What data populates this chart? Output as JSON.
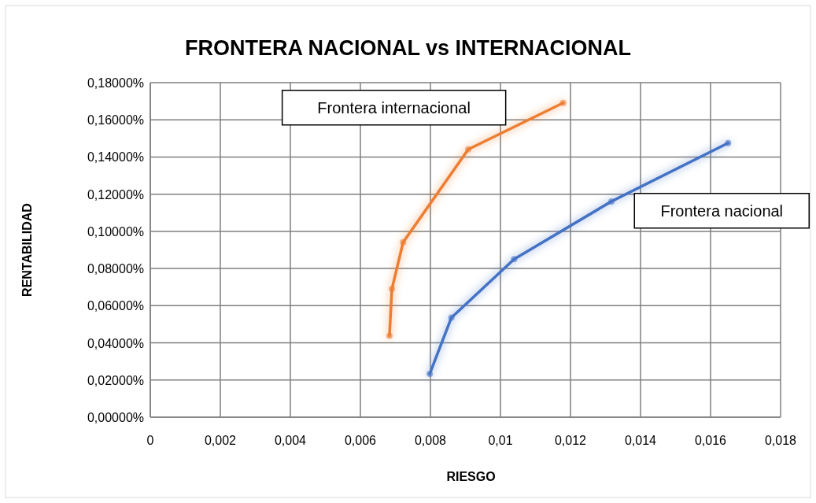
{
  "chart_data": {
    "type": "line",
    "title": "FRONTERA NACIONAL vs INTERNACIONAL",
    "xlabel": "RIESGO",
    "ylabel": "RENTABILIDAD",
    "series": [
      {
        "name": "Frontera internacional",
        "color": "#ed7d31",
        "x": [
          0.00683,
          0.0069,
          0.00722,
          0.00908,
          0.01179
        ],
        "values": [
          0.0438,
          0.069,
          0.0941,
          0.1441,
          0.1691
        ]
      },
      {
        "name": "Frontera nacional",
        "color": "#4472c4",
        "x": [
          0.00798,
          0.0086,
          0.01039,
          0.01317,
          0.0165
        ],
        "values": [
          0.0233,
          0.0536,
          0.085,
          0.1161,
          0.1475
        ]
      }
    ],
    "xlim": [
      0,
      0.018
    ],
    "xticks": [
      0,
      {
        "value": 0.002,
        "label": "0,002"
      },
      {
        "value": 0.004,
        "label": "0,004"
      },
      {
        "value": 0.006,
        "label": "0,006"
      },
      {
        "value": 0.008,
        "label": "0,008"
      },
      {
        "value": 0.01,
        "label": "0,01"
      },
      {
        "value": 0.012,
        "label": "0,012"
      },
      {
        "value": 0.014,
        "label": "0,014"
      },
      {
        "value": 0.016,
        "label": "0,016"
      },
      {
        "value": 0.018,
        "label": "0,018"
      }
    ],
    "ylim": [
      0,
      0.18
    ],
    "yticks": [
      {
        "value": 0,
        "label": "0,00000%"
      },
      {
        "value": 0.02,
        "label": "0,02000%"
      },
      {
        "value": 0.04,
        "label": "0,04000%"
      },
      {
        "value": 0.06,
        "label": "0,06000%"
      },
      {
        "value": 0.08,
        "label": "0,08000%"
      },
      {
        "value": 0.1,
        "label": "0,10000%"
      },
      {
        "value": 0.12,
        "label": "0,12000%"
      },
      {
        "value": 0.14,
        "label": "0,14000%"
      },
      {
        "value": 0.16,
        "label": "0,16000%"
      },
      {
        "value": 0.18,
        "label": "0,18000%"
      }
    ],
    "grid": true,
    "marker": "circle",
    "line_style": "solid"
  }
}
